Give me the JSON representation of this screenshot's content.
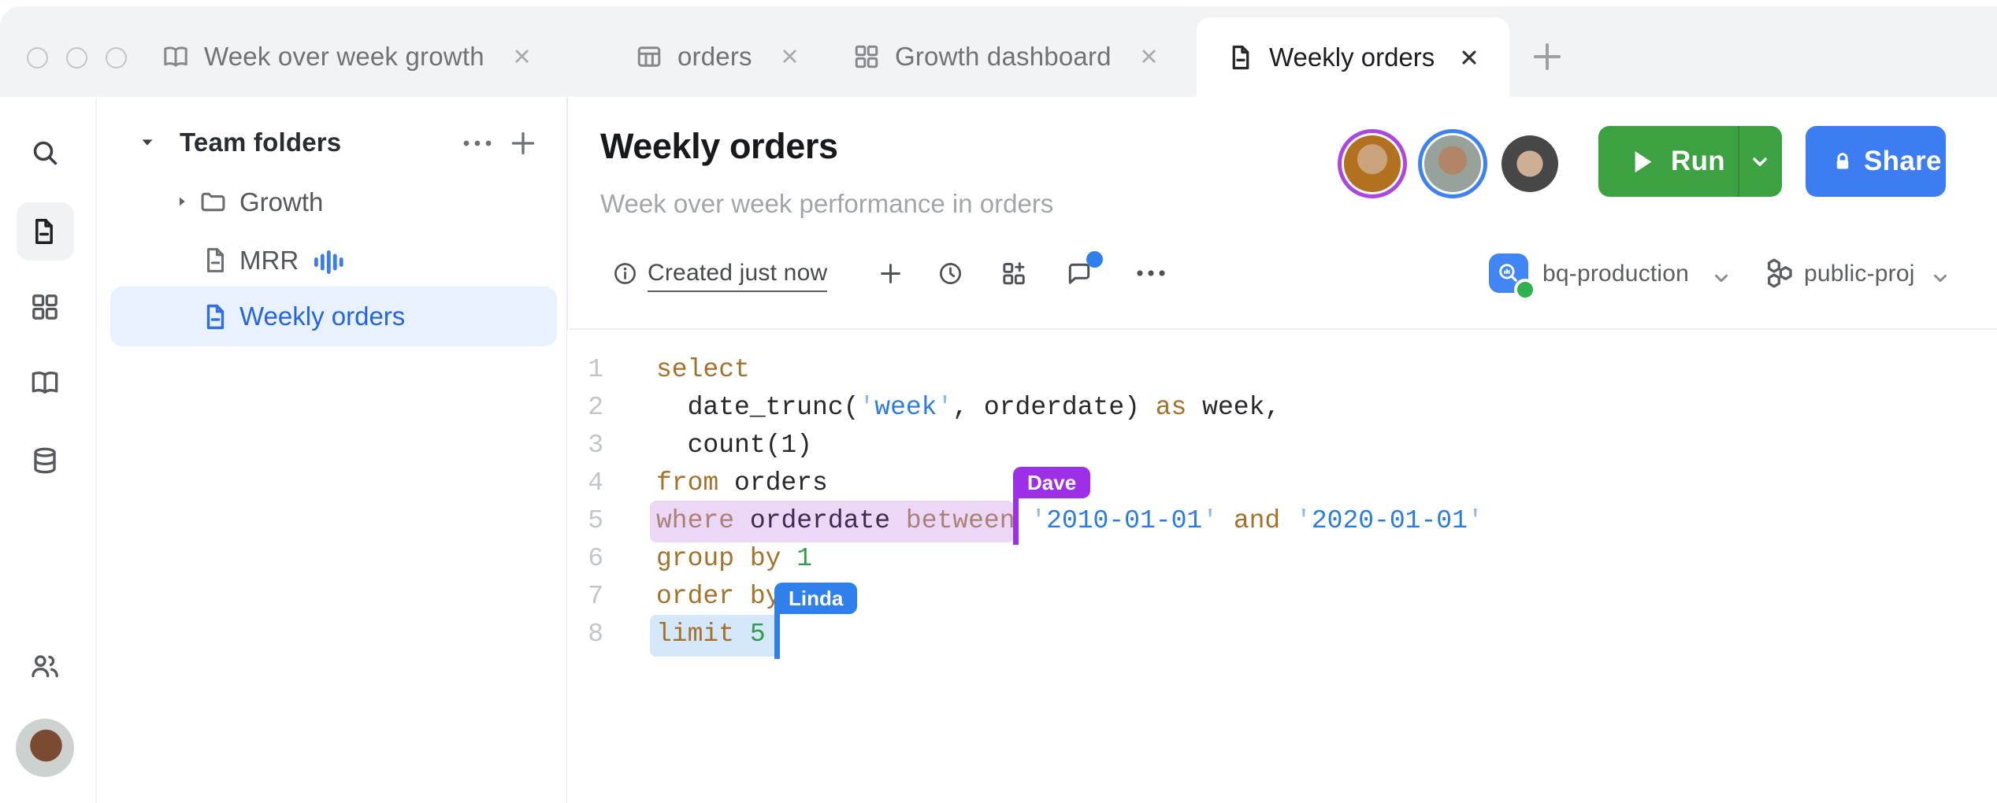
{
  "window": {
    "controls": [
      "close",
      "minimize",
      "zoom"
    ],
    "tabs": [
      {
        "label": "Week over week growth",
        "icon": "book-icon",
        "active": false
      },
      {
        "label": "orders",
        "icon": "table-icon",
        "active": false
      },
      {
        "label": "Growth dashboard",
        "icon": "dashboard-icon",
        "active": false
      },
      {
        "label": "Weekly orders",
        "icon": "document-icon",
        "active": true
      }
    ]
  },
  "rail": {
    "icons": [
      "search-icon",
      "document-icon",
      "dashboard-icon",
      "book-icon",
      "database-icon",
      "people-icon"
    ],
    "active_icon": "document-icon"
  },
  "panel": {
    "header": "Team folders",
    "items": [
      {
        "label": "Growth",
        "icon": "folder-icon",
        "expandable": true,
        "selected": false
      },
      {
        "label": "MRR",
        "icon": "document-icon",
        "badge": "chart-bars-icon",
        "selected": false
      },
      {
        "label": "Weekly orders",
        "icon": "document-icon",
        "selected": true
      }
    ]
  },
  "doc": {
    "title": "Weekly orders",
    "subtitle": "Week over week performance in orders",
    "status": "Created just now"
  },
  "actions": {
    "run": "Run",
    "share": "Share"
  },
  "connection": {
    "name": "bq-production",
    "project": "public-proj",
    "status_color": "#2fb14f"
  },
  "presence": [
    {
      "ring": "#ab47e0"
    },
    {
      "ring": "#3e82f2"
    },
    {
      "ring": ""
    }
  ],
  "editor": {
    "cursors": [
      {
        "name": "Dave",
        "color": "#9d30e6",
        "selection": "#ecd7f6"
      },
      {
        "name": "Linda",
        "color": "#2f80ed",
        "selection": "#d5e7fb"
      }
    ],
    "lines": [
      {
        "num": "1",
        "tokens": [
          {
            "t": "select",
            "c": "kw"
          }
        ]
      },
      {
        "num": "2",
        "tokens": [
          {
            "t": "  date_trunc(",
            "c": "id"
          },
          {
            "t": "'",
            "c": "q"
          },
          {
            "t": "week",
            "c": "str"
          },
          {
            "t": "'",
            "c": "q"
          },
          {
            "t": ", orderdate) ",
            "c": "id"
          },
          {
            "t": "as",
            "c": "kw"
          },
          {
            "t": " week,",
            "c": "id"
          }
        ]
      },
      {
        "num": "3",
        "tokens": [
          {
            "t": "  count(1)",
            "c": "id"
          }
        ]
      },
      {
        "num": "4",
        "tokens": [
          {
            "t": "from",
            "c": "kw"
          },
          {
            "t": " orders",
            "c": "id"
          }
        ]
      },
      {
        "num": "5",
        "tokens": [
          {
            "t": "where",
            "c": "kwm"
          },
          {
            "t": " ",
            "c": "id"
          },
          {
            "t": "orderdate",
            "c": "plum"
          },
          {
            "t": " ",
            "c": "id"
          },
          {
            "t": "between",
            "c": "kwm"
          },
          {
            "t": " ",
            "c": "id"
          },
          {
            "t": "'",
            "c": "q"
          },
          {
            "t": "2010-01-01",
            "c": "str"
          },
          {
            "t": "'",
            "c": "q"
          },
          {
            "t": " ",
            "c": "id"
          },
          {
            "t": "and",
            "c": "kw"
          },
          {
            "t": " ",
            "c": "id"
          },
          {
            "t": "'",
            "c": "q"
          },
          {
            "t": "2020-01-01",
            "c": "str"
          },
          {
            "t": "'",
            "c": "q"
          }
        ]
      },
      {
        "num": "6",
        "tokens": [
          {
            "t": "group by",
            "c": "kw"
          },
          {
            "t": " ",
            "c": "id"
          },
          {
            "t": "1",
            "c": "num"
          }
        ]
      },
      {
        "num": "7",
        "tokens": [
          {
            "t": "order by",
            "c": "kw"
          }
        ]
      },
      {
        "num": "8",
        "tokens": [
          {
            "t": "limit",
            "c": "kw"
          },
          {
            "t": " ",
            "c": "id"
          },
          {
            "t": "5",
            "c": "num"
          }
        ]
      }
    ]
  },
  "colors": {
    "run_green": "#3ca140",
    "share_blue": "#3c7ef2",
    "accent_blue": "#2565dd",
    "keyword": "#a5722b",
    "string": "#2b7ce0",
    "number": "#2f9e44"
  }
}
